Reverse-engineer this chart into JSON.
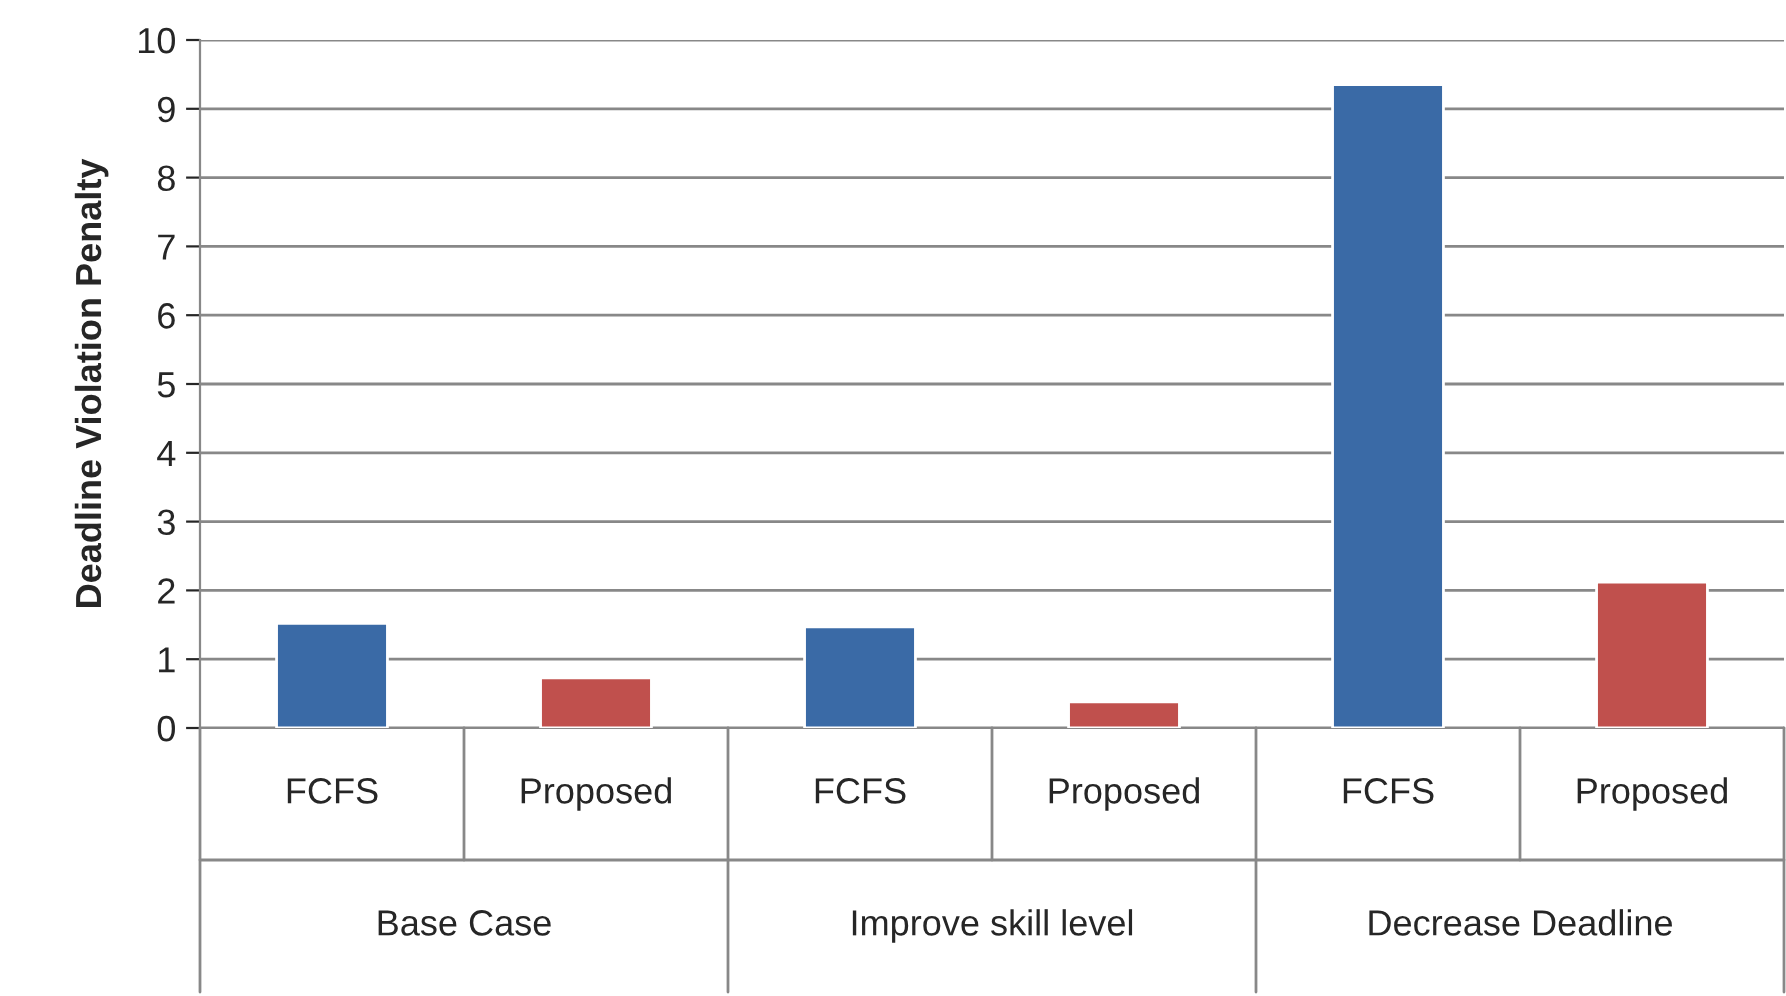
{
  "chart_data": {
    "type": "bar",
    "ylabel": "Deadline Violation Penalty",
    "categories": [
      "FCFS",
      "Proposed",
      "FCFS",
      "Proposed",
      "FCFS",
      "Proposed"
    ],
    "values": [
      1.52,
      0.73,
      1.47,
      0.38,
      9.35,
      2.12
    ],
    "colors": [
      "#3a6aa6",
      "#c0504d",
      "#3a6aa6",
      "#c0504d",
      "#3a6aa6",
      "#c0504d"
    ],
    "annotations": [
      "Base Case",
      "Improve skill level",
      "Decrease Deadline"
    ],
    "ylim": [
      0,
      10
    ],
    "yticks": [
      0,
      1,
      2,
      3,
      4,
      5,
      6,
      7,
      8,
      9,
      10
    ],
    "grid": "y"
  }
}
